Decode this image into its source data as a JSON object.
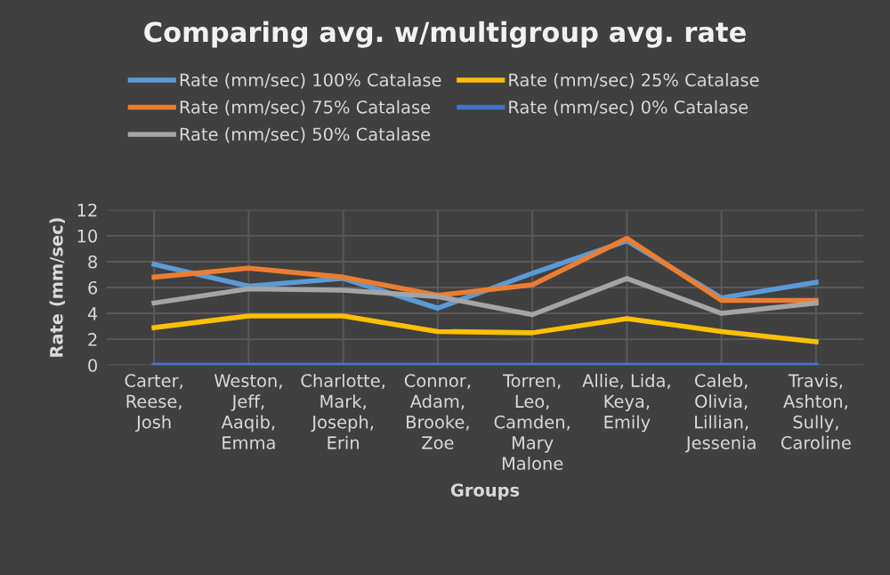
{
  "chart_data": {
    "type": "line",
    "title": "Comparing avg. w/multigroup avg. rate",
    "xlabel": "Groups",
    "ylabel": "Rate (mm/sec)",
    "categories": [
      "Carter,\nReese,\nJosh",
      "Weston,\nJeff,\nAaqib,\nEmma",
      "Charlotte,\nMark,\nJoseph,\nErin",
      "Connor,\nAdam,\nBrooke,\nZoe",
      "Torren,\nLeo,\nCamden,\nMary\nMalone",
      "Allie, Lida,\nKeya,\nEmily",
      "Caleb,\nOlivia,\nLillian,\nJessenia",
      "Travis,\nAshton,\nSully,\nCaroline"
    ],
    "series": [
      {
        "name": "Rate (mm/sec) 100% Catalase",
        "color": "#5b9bd5",
        "values": [
          7.8,
          6.1,
          6.7,
          4.4,
          7.1,
          9.6,
          5.2,
          6.4
        ]
      },
      {
        "name": "Rate (mm/sec) 75% Catalase",
        "color": "#ed7d31",
        "values": [
          6.8,
          7.5,
          6.8,
          5.4,
          6.2,
          9.8,
          5.0,
          5.0
        ]
      },
      {
        "name": "Rate (mm/sec) 50% Catalase",
        "color": "#a5a5a5",
        "values": [
          4.8,
          5.9,
          5.8,
          5.3,
          3.9,
          6.7,
          4.0,
          4.8
        ]
      },
      {
        "name": "Rate (mm/sec) 25% Catalase",
        "color": "#ffc000",
        "values": [
          2.9,
          3.8,
          3.8,
          2.6,
          2.5,
          3.6,
          2.6,
          1.8
        ]
      },
      {
        "name": "Rate (mm/sec) 0% Catalase",
        "color": "#4472c4",
        "values": [
          0,
          0,
          0,
          0,
          0,
          0,
          0,
          0
        ]
      }
    ],
    "ylim": [
      0,
      12
    ],
    "yticks": [
      0,
      2,
      4,
      6,
      8,
      10,
      12
    ],
    "grid": true,
    "legend": "top",
    "marker": "none",
    "line_style": "solid"
  }
}
